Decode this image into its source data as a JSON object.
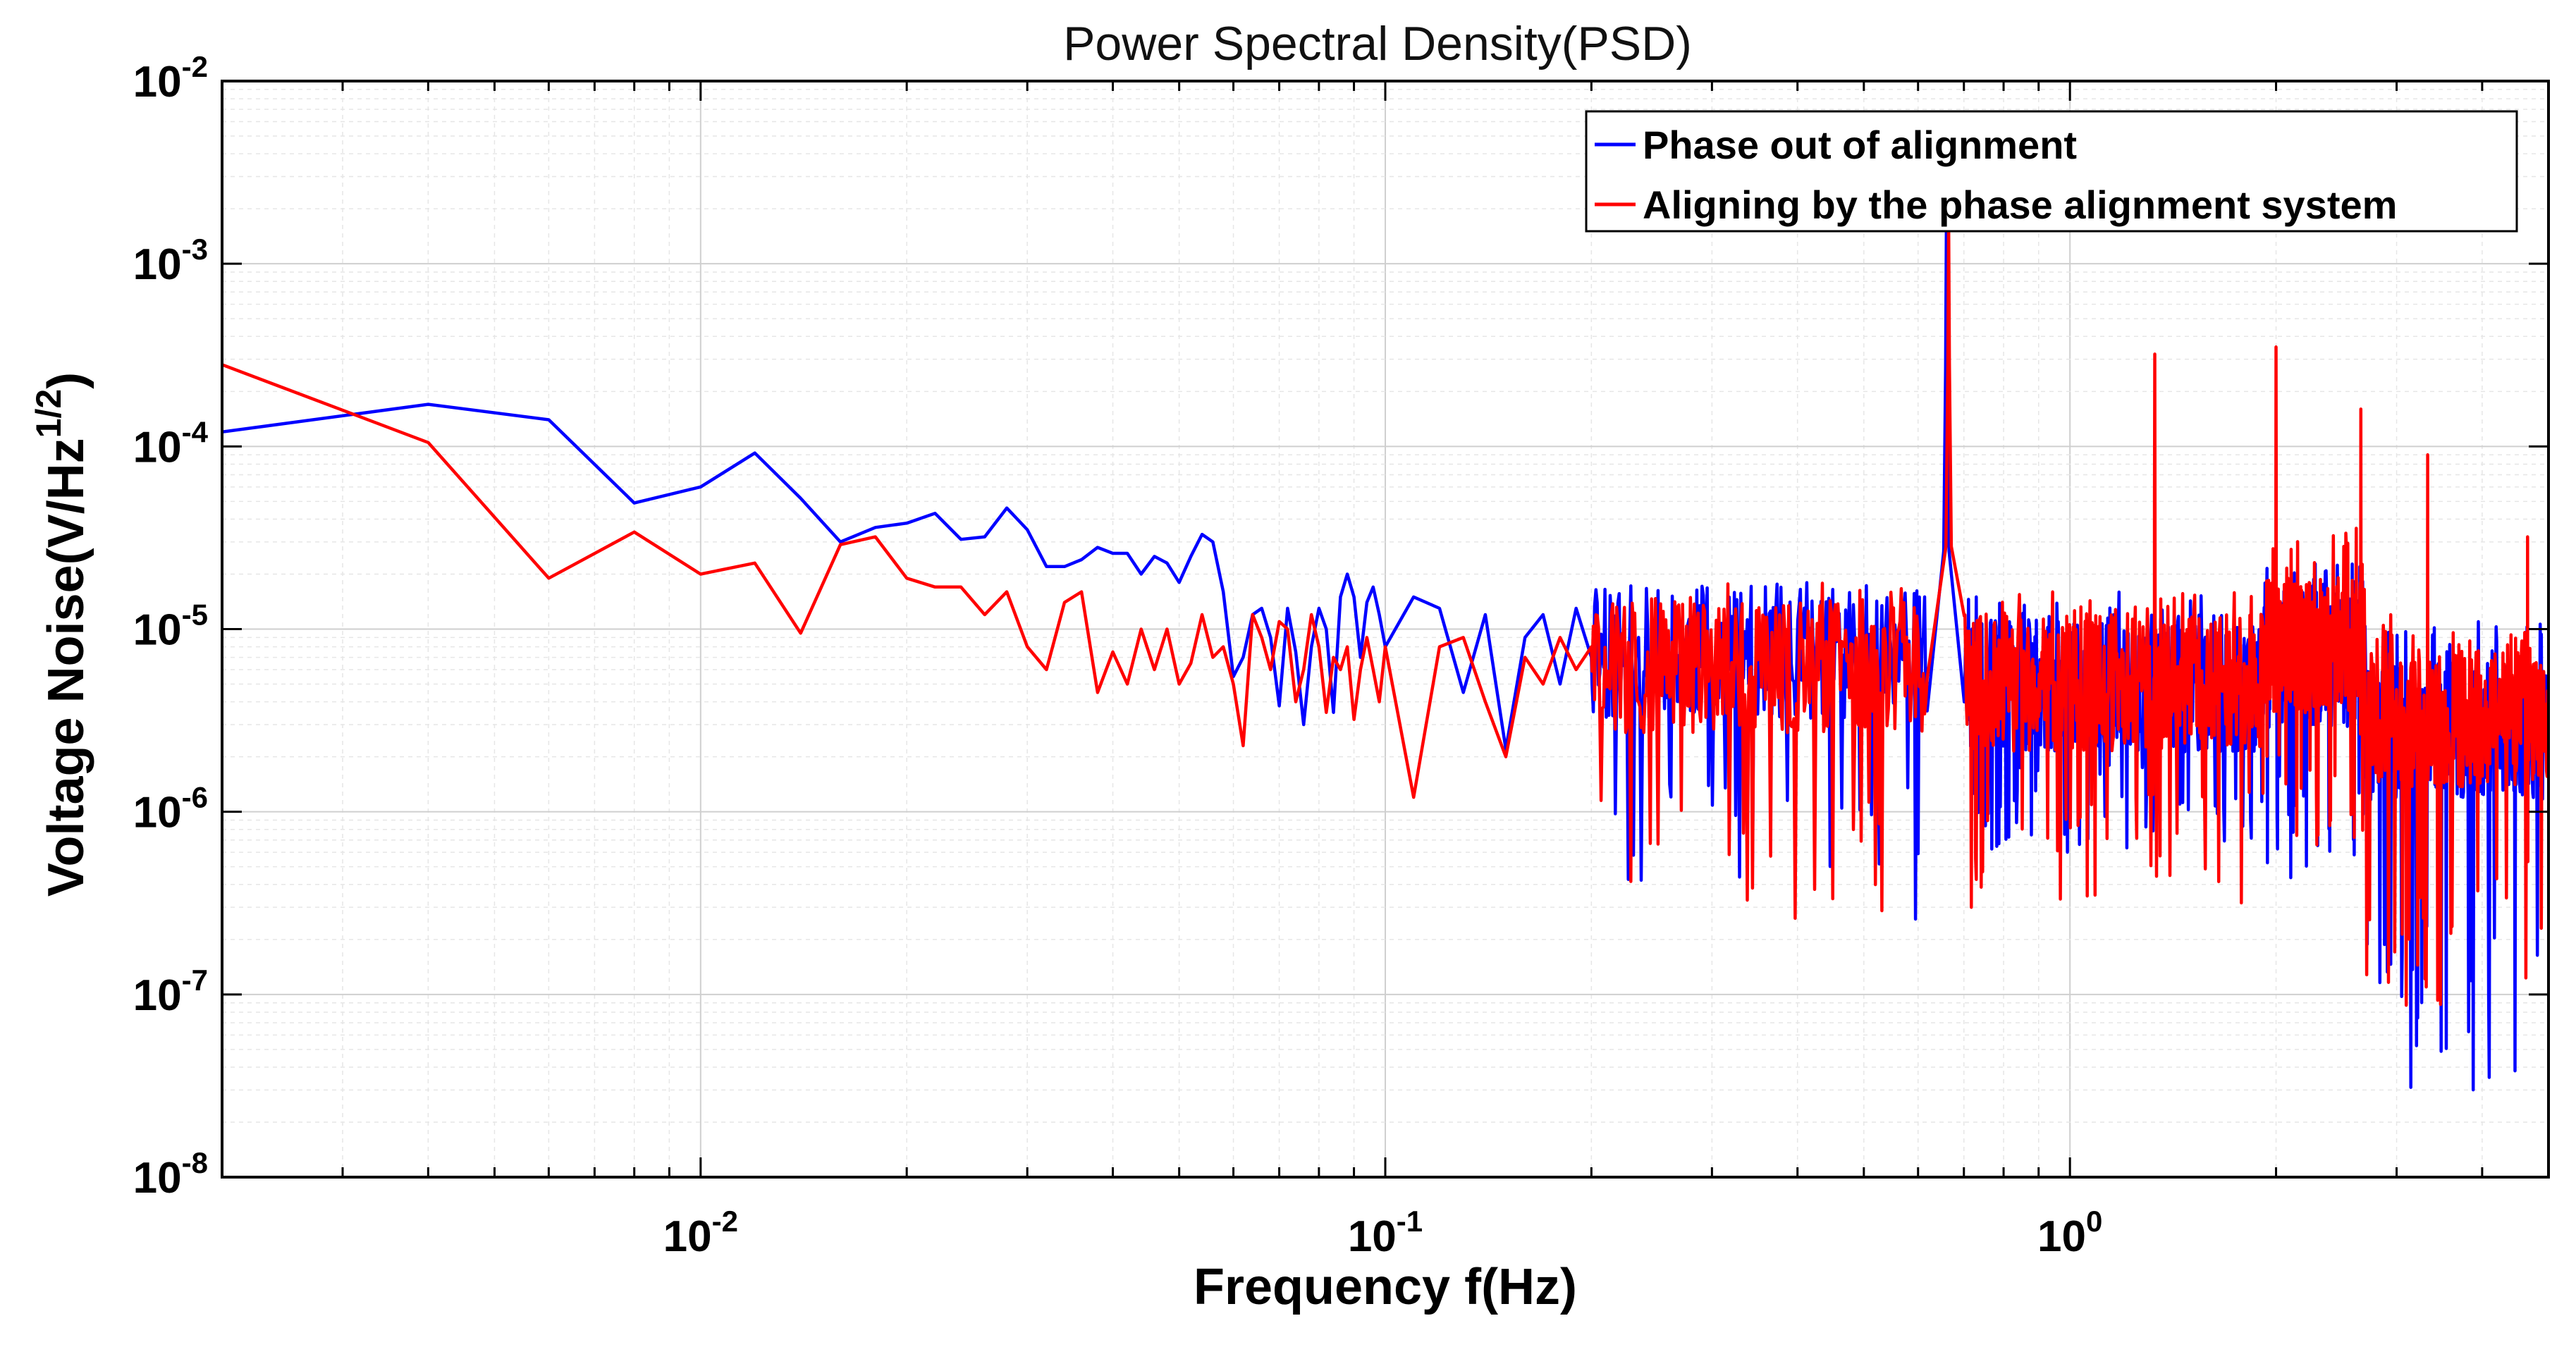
{
  "chart_data": {
    "type": "line",
    "title": "Power Spectral Density(PSD)",
    "xlabel": "Frequency f(Hz)",
    "ylabel": "Voltage Noise(V/Hz",
    "ylabel_sup": "1/2",
    "ylabel_close": ")",
    "xscale": "log",
    "yscale": "log",
    "xlim": [
      0.002,
      5.0
    ],
    "ylim": [
      1e-08,
      0.01
    ],
    "grid": true,
    "legend_position": "top-right",
    "x_ticks": [
      {
        "value": 0.01,
        "base": "10",
        "exp": "-2"
      },
      {
        "value": 0.1,
        "base": "10",
        "exp": "-1"
      },
      {
        "value": 1,
        "base": "10",
        "exp": "0"
      }
    ],
    "y_ticks": [
      {
        "value": 1e-08,
        "base": "10",
        "exp": "-8"
      },
      {
        "value": 1e-07,
        "base": "10",
        "exp": "-7"
      },
      {
        "value": 1e-06,
        "base": "10",
        "exp": "-6"
      },
      {
        "value": 1e-05,
        "base": "10",
        "exp": "-5"
      },
      {
        "value": 0.0001,
        "base": "10",
        "exp": "-4"
      },
      {
        "value": 0.001,
        "base": "10",
        "exp": "-3"
      },
      {
        "value": 0.01,
        "base": "10",
        "exp": "-2"
      }
    ],
    "series": [
      {
        "name": "Phase out of alignment",
        "color": "#0000ff",
        "x": [
          0.002,
          0.004,
          0.006,
          0.008,
          0.01,
          0.012,
          0.014,
          0.016,
          0.018,
          0.02,
          0.022,
          0.024,
          0.026,
          0.028,
          0.03,
          0.032,
          0.034,
          0.036,
          0.038,
          0.04,
          0.042,
          0.044,
          0.046,
          0.048,
          0.05,
          0.052,
          0.054,
          0.056,
          0.058,
          0.06,
          0.062,
          0.064,
          0.066,
          0.068,
          0.07,
          0.072,
          0.074,
          0.076,
          0.078,
          0.08,
          0.082,
          0.084,
          0.086,
          0.088,
          0.09,
          0.092,
          0.094,
          0.096,
          0.098,
          0.1,
          0.11,
          0.12,
          0.13,
          0.14,
          0.15,
          0.16,
          0.17,
          0.18,
          0.19,
          0.2
        ],
        "y": [
          0.00012,
          0.00017,
          0.00014,
          4.9e-05,
          6e-05,
          9.2e-05,
          5.2e-05,
          3e-05,
          3.6e-05,
          3.8e-05,
          4.3e-05,
          3.1e-05,
          3.2e-05,
          4.6e-05,
          3.5e-05,
          2.2e-05,
          2.2e-05,
          2.4e-05,
          2.8e-05,
          2.6e-05,
          2.6e-05,
          2e-05,
          2.5e-05,
          2.3e-05,
          1.8e-05,
          2.5e-05,
          3.3e-05,
          3e-05,
          1.6e-05,
          5.5e-06,
          7e-06,
          1.2e-05,
          1.3e-05,
          9e-06,
          3.8e-06,
          1.3e-05,
          7.5e-06,
          3e-06,
          8e-06,
          1.3e-05,
          1e-05,
          3.5e-06,
          1.5e-05,
          2e-05,
          1.5e-05,
          7e-06,
          1.4e-05,
          1.7e-05,
          1.2e-05,
          8e-06,
          1.5e-05,
          1.3e-05,
          4.5e-06,
          1.2e-05,
          2.2e-06,
          9e-06,
          1.2e-05,
          5e-06,
          1.3e-05,
          7e-06
        ],
        "noise_segments": [
          {
            "from": 0.2,
            "to": 0.62,
            "center": 8e-06,
            "low": 2.5e-07,
            "high": 1.8e-05,
            "points": 260,
            "seed": 11
          },
          {
            "from": 0.7,
            "to": 1.9,
            "center": 5.5e-06,
            "low": 6e-07,
            "high": 1.6e-05,
            "points": 420,
            "seed": 23
          },
          {
            "from": 1.9,
            "to": 2.7,
            "center": 7.5e-06,
            "low": 4e-07,
            "high": 2.4e-05,
            "points": 260,
            "seed": 37
          },
          {
            "from": 2.7,
            "to": 5.0,
            "center": 3e-06,
            "low": 3e-08,
            "high": 1.1e-05,
            "points": 320,
            "seed": 41
          }
        ],
        "peaks": [
          {
            "x": 0.66,
            "y": 0.0016,
            "width": 0.006
          }
        ]
      },
      {
        "name": "Aligning by the phase alignment system",
        "color": "#ff0000",
        "x": [
          0.002,
          0.004,
          0.006,
          0.008,
          0.01,
          0.012,
          0.014,
          0.016,
          0.018,
          0.02,
          0.022,
          0.024,
          0.026,
          0.028,
          0.03,
          0.032,
          0.034,
          0.036,
          0.038,
          0.04,
          0.042,
          0.044,
          0.046,
          0.048,
          0.05,
          0.052,
          0.054,
          0.056,
          0.058,
          0.06,
          0.062,
          0.064,
          0.066,
          0.068,
          0.07,
          0.072,
          0.074,
          0.076,
          0.078,
          0.08,
          0.082,
          0.084,
          0.086,
          0.088,
          0.09,
          0.092,
          0.094,
          0.096,
          0.098,
          0.1,
          0.11,
          0.12,
          0.13,
          0.14,
          0.15,
          0.16,
          0.17,
          0.18,
          0.19,
          0.2
        ],
        "y": [
          0.00028,
          0.000105,
          1.9e-05,
          3.4e-05,
          2e-05,
          2.3e-05,
          9.5e-06,
          2.9e-05,
          3.2e-05,
          1.9e-05,
          1.7e-05,
          1.7e-05,
          1.2e-05,
          1.6e-05,
          8e-06,
          6e-06,
          1.4e-05,
          1.6e-05,
          4.5e-06,
          7.5e-06,
          5e-06,
          1e-05,
          6e-06,
          1e-05,
          5e-06,
          6.5e-06,
          1.2e-05,
          7e-06,
          8e-06,
          5e-06,
          2.3e-06,
          1.2e-05,
          9e-06,
          6e-06,
          1.1e-05,
          1e-05,
          4e-06,
          6e-06,
          1.2e-05,
          8e-06,
          3.5e-06,
          7e-06,
          6e-06,
          8e-06,
          3.2e-06,
          6e-06,
          9e-06,
          6e-06,
          4e-06,
          8e-06,
          1.2e-06,
          8e-06,
          9e-06,
          4e-06,
          2e-06,
          7e-06,
          5e-06,
          9e-06,
          6e-06,
          8e-06
        ],
        "noise_segments": [
          {
            "from": 0.2,
            "to": 0.62,
            "center": 7e-06,
            "low": 2.5e-07,
            "high": 1.8e-05,
            "points": 260,
            "seed": 57
          },
          {
            "from": 0.7,
            "to": 1.9,
            "center": 5.5e-06,
            "low": 3e-07,
            "high": 1.7e-05,
            "points": 420,
            "seed": 63
          },
          {
            "from": 1.9,
            "to": 2.7,
            "center": 9e-06,
            "low": 5e-07,
            "high": 3.6e-05,
            "points": 260,
            "seed": 71
          },
          {
            "from": 2.7,
            "to": 5.0,
            "center": 3.5e-06,
            "low": 7e-08,
            "high": 1.2e-05,
            "points": 320,
            "seed": 79
          }
        ],
        "peaks": [
          {
            "x": 0.665,
            "y": 0.0017,
            "width": 0.006
          },
          {
            "x": 1.33,
            "y": 0.00032,
            "width": 0.004
          },
          {
            "x": 2.0,
            "y": 0.00035,
            "width": 0.004
          },
          {
            "x": 2.66,
            "y": 0.00016,
            "width": 0.004
          },
          {
            "x": 3.33,
            "y": 9e-05,
            "width": 0.004
          },
          {
            "x": 4.66,
            "y": 3.2e-05,
            "width": 0.004
          }
        ]
      }
    ]
  }
}
